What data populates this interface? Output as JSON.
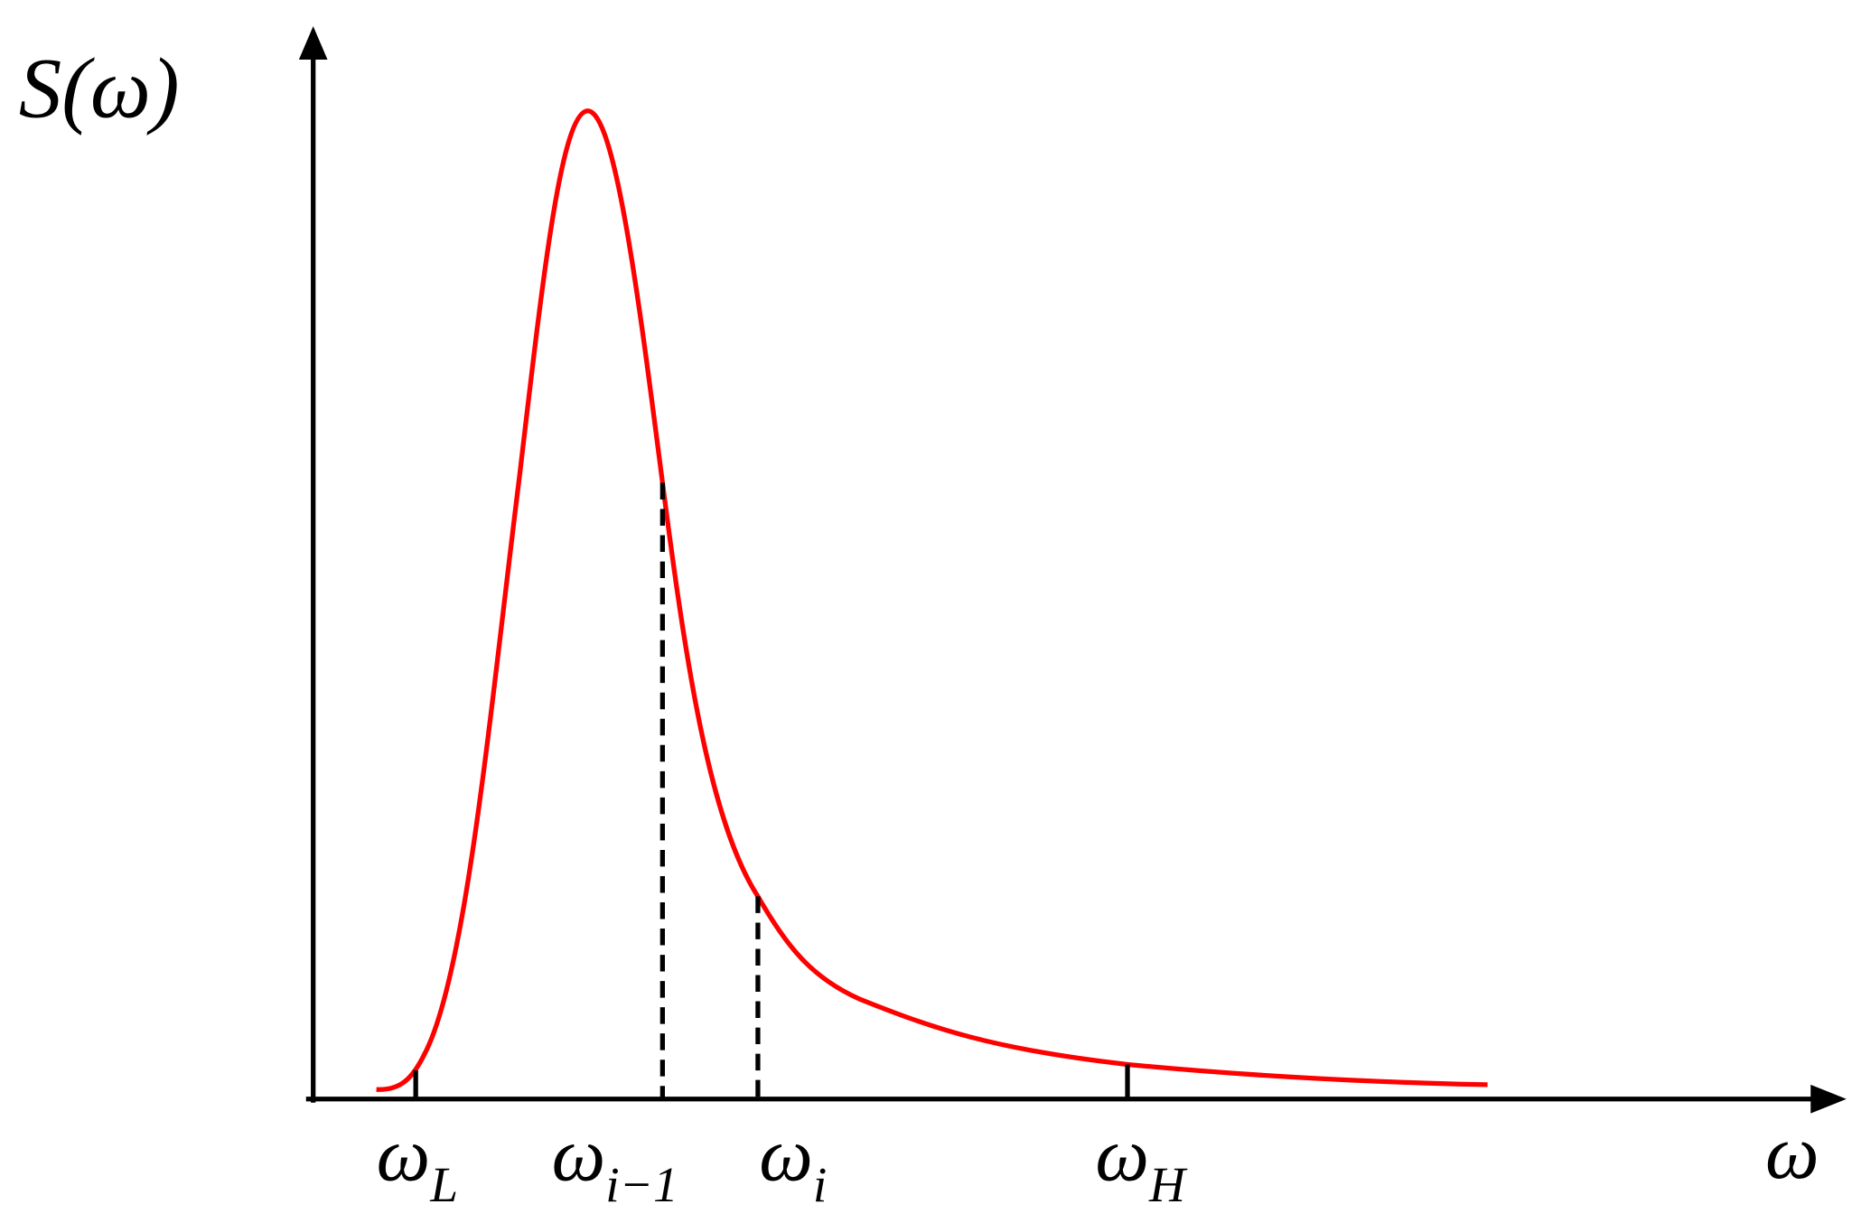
{
  "axes": {
    "y_label": "S(ω)",
    "x_label": "ω"
  },
  "ticks": [
    {
      "symbol": "ω",
      "subscript": "L"
    },
    {
      "symbol": "ω",
      "subscript": "i−1"
    },
    {
      "symbol": "ω",
      "subscript": "i"
    },
    {
      "symbol": "ω",
      "subscript": "H"
    }
  ]
}
